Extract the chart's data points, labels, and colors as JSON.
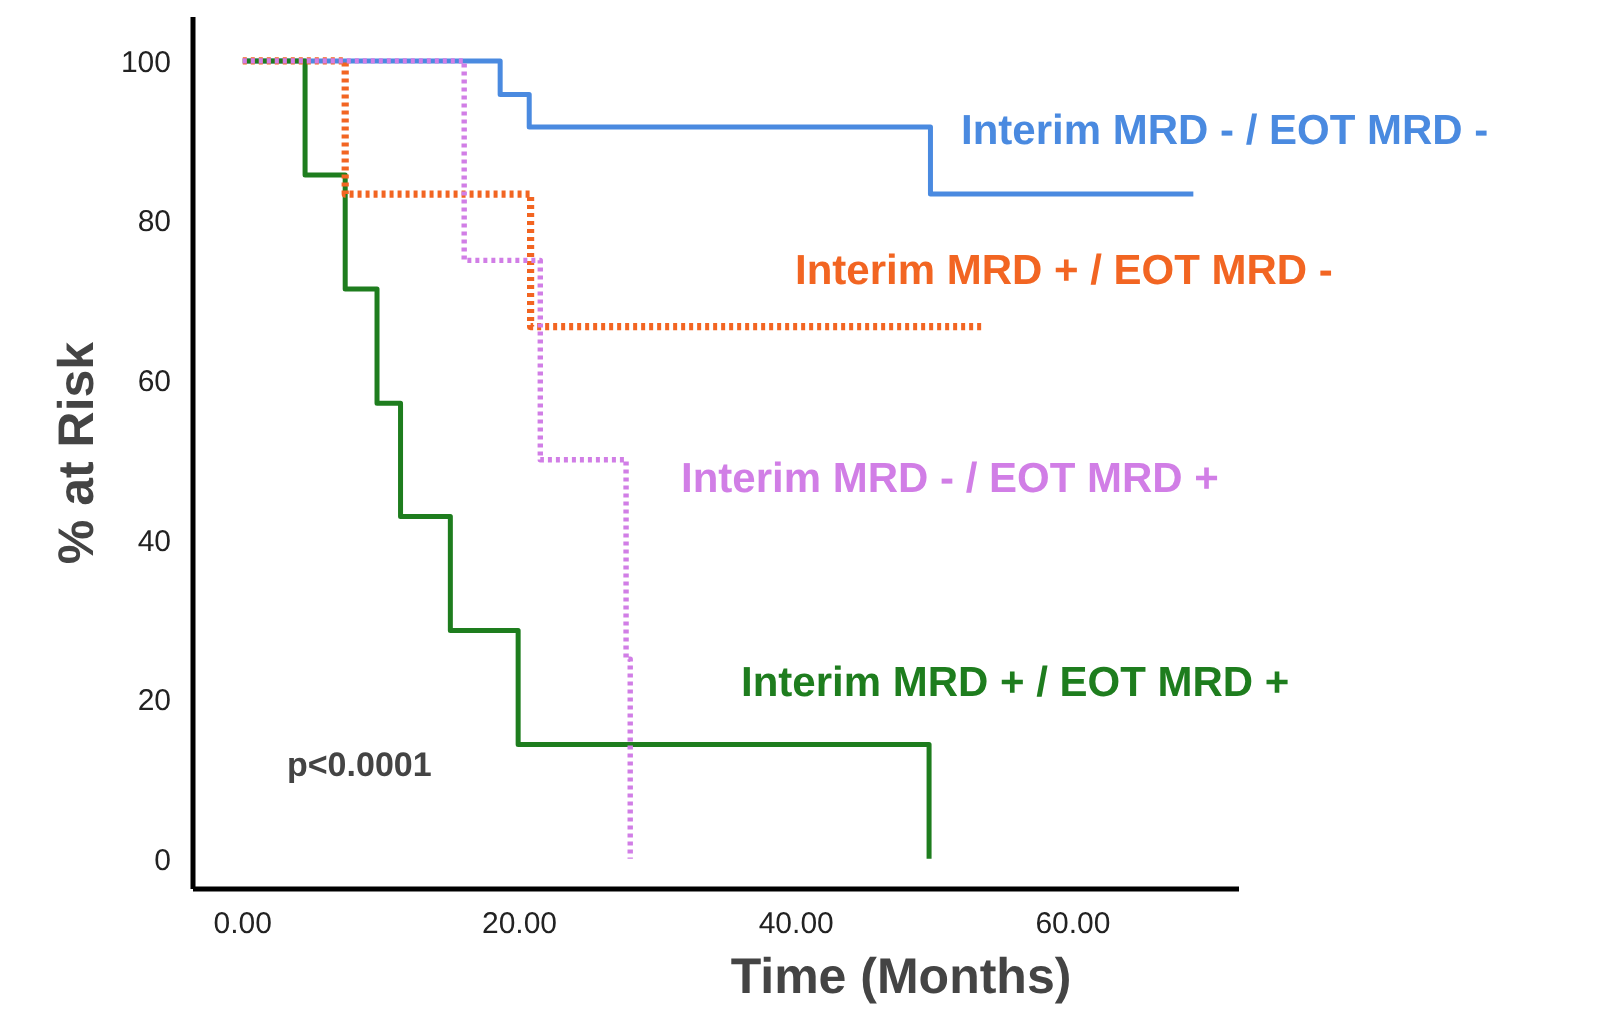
{
  "chart_data": {
    "type": "step",
    "xlabel": "Time (Months)",
    "ylabel": "% at Risk",
    "xlim": [
      -3.6,
      72
    ],
    "ylim": [
      -3.8,
      105.5
    ],
    "xticks": [
      {
        "value": 0,
        "label": "0.00"
      },
      {
        "value": 20,
        "label": "20.00"
      },
      {
        "value": 40,
        "label": "40.00"
      },
      {
        "value": 60,
        "label": "60.00"
      }
    ],
    "yticks": [
      0,
      20,
      40,
      60,
      80,
      100
    ],
    "grid": false,
    "series": [
      {
        "name": "Interim MRD - / EOT MRD -",
        "color": "#4a8ae0",
        "line_style": "solid",
        "x": [
          0,
          18.6,
          20.7,
          49.7,
          68.7
        ],
        "values": [
          100,
          95.8,
          91.7,
          83.3,
          83.3
        ]
      },
      {
        "name": "Interim MRD + / EOT MRD -",
        "color": "#f26522",
        "line_style": "dotted",
        "x": [
          0,
          7.4,
          20.8,
          53.4
        ],
        "values": [
          100,
          83.3,
          66.7,
          66.7
        ]
      },
      {
        "name": "Interim MRD - / EOT MRD +",
        "color": "#d17ee6",
        "line_style": "dotted",
        "x": [
          0,
          16.0,
          21.5,
          27.7,
          28.0
        ],
        "values": [
          100,
          75,
          50,
          25,
          0
        ]
      },
      {
        "name": "Interim MRD + / EOT MRD +",
        "color": "#1e7d1e",
        "line_style": "solid",
        "x": [
          0,
          4.5,
          7.4,
          9.7,
          11.4,
          15.0,
          19.9,
          49.6
        ],
        "values": [
          100,
          85.7,
          71.4,
          57.1,
          42.9,
          28.6,
          14.3,
          0
        ]
      }
    ],
    "annotations": [
      "p<0.0001"
    ]
  }
}
